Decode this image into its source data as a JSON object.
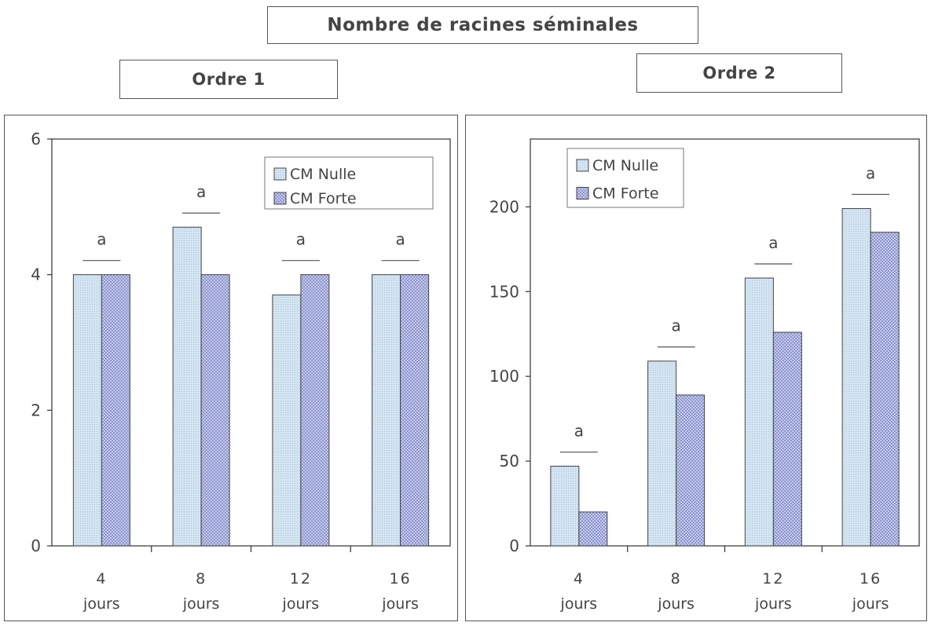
{
  "header": {
    "title": "Nombre de racines séminales",
    "subtitle_left": "Ordre 1",
    "subtitle_right": "Ordre 2"
  },
  "colors": {
    "nulle_fill": "#cfe0ee",
    "forte_fill": "#8d95cc",
    "bar_stroke": "#444444",
    "axis": "#333333"
  },
  "chart_data": [
    {
      "type": "bar",
      "title": "Ordre 1",
      "categories": [
        [
          "4",
          "jours"
        ],
        [
          "8",
          "jours"
        ],
        [
          "12",
          "jours"
        ],
        [
          "16",
          "jours"
        ]
      ],
      "series": [
        {
          "name": "CM Nulle",
          "values": [
            4,
            4.7,
            3.7,
            4
          ]
        },
        {
          "name": "CM Forte",
          "values": [
            4,
            4,
            4,
            4
          ]
        }
      ],
      "annotations": [
        "a",
        "a",
        "a",
        "a"
      ],
      "ylim": [
        0,
        6
      ],
      "yticks": [
        0,
        2,
        4,
        6
      ],
      "legend": "top-right",
      "grid": false
    },
    {
      "type": "bar",
      "title": "Ordre 2",
      "categories": [
        [
          "4",
          "jours"
        ],
        [
          "8",
          "jours"
        ],
        [
          "12",
          "jours"
        ],
        [
          "16",
          "jours"
        ]
      ],
      "series": [
        {
          "name": "CM Nulle",
          "values": [
            47,
            109,
            158,
            199
          ]
        },
        {
          "name": "CM Forte",
          "values": [
            20,
            89,
            126,
            185
          ]
        }
      ],
      "annotations": [
        "a",
        "a",
        "a",
        "a"
      ],
      "ylim": [
        0,
        240
      ],
      "yticks": [
        0,
        50,
        100,
        150,
        200
      ],
      "legend": "top-left",
      "grid": false
    }
  ]
}
